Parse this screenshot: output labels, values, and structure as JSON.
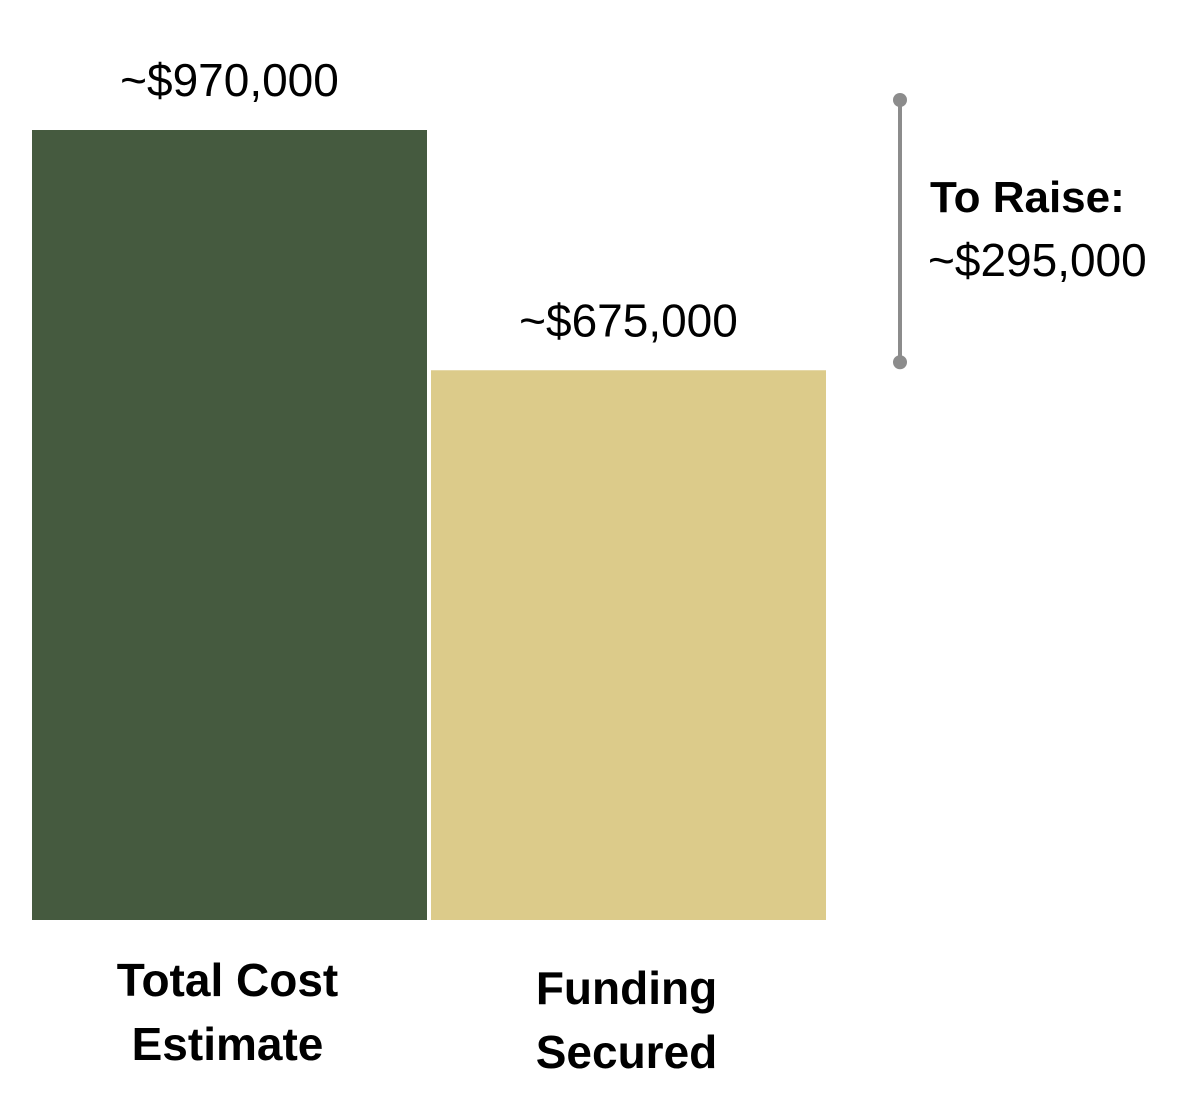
{
  "chart_data": {
    "type": "bar",
    "categories": [
      "Total Cost Estimate",
      "Funding Secured"
    ],
    "category_lines": [
      [
        "Total Cost",
        "Estimate"
      ],
      [
        "Funding",
        "Secured"
      ]
    ],
    "values": [
      970000,
      675000
    ],
    "data_labels": [
      "~$970,000",
      "~$675,000"
    ],
    "colors": [
      "#455A3F",
      "#DCCB8A"
    ],
    "ylim": [
      0,
      970000
    ],
    "grid": false,
    "annotation": {
      "title": "To Raise:",
      "value_label": "~$295,000",
      "value": 295000,
      "from": 970000,
      "to": 675000,
      "color": "#8C8C8C"
    }
  }
}
